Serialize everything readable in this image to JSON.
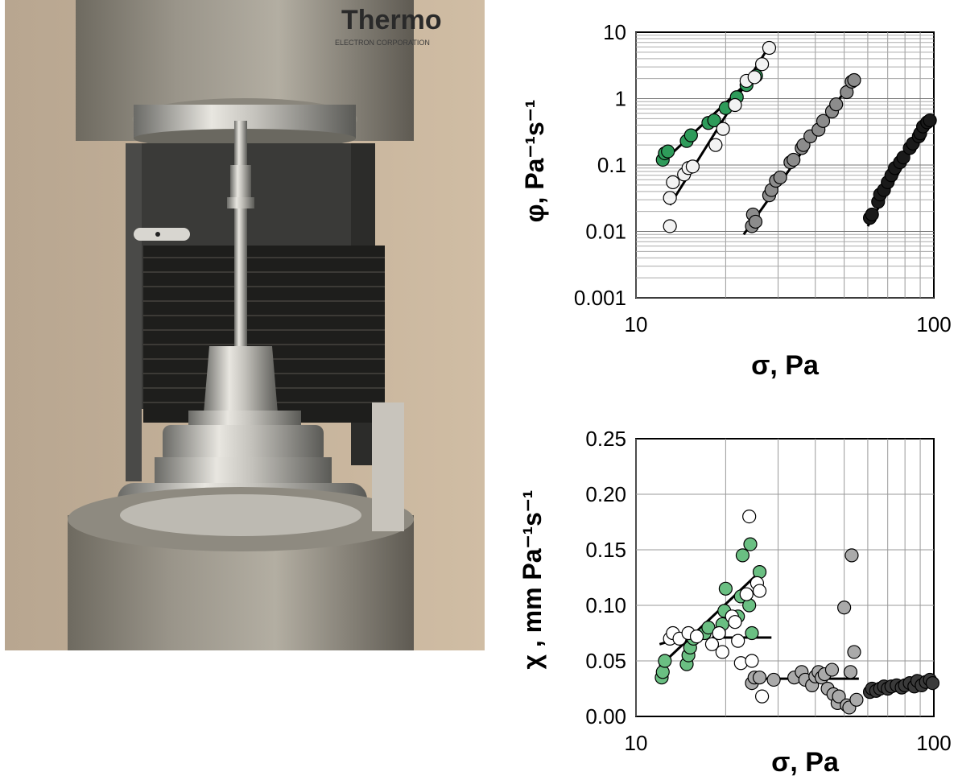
{
  "photo": {
    "description_icon": "rheometer-vane-photo-icon",
    "brand_text": "Thermo",
    "brand_subtext": "ELECTRON CORPORATION"
  },
  "chart_data": [
    {
      "type": "scatter",
      "title": "",
      "xlabel": "σ, Pa",
      "ylabel": "φ, Pa⁻¹s⁻¹",
      "xscale": "log",
      "yscale": "log",
      "xlim": [
        10,
        100
      ],
      "ylim": [
        0.001,
        10
      ],
      "xticks": [
        "10",
        "100"
      ],
      "yticks": [
        "0.001",
        "0.01",
        "0.1",
        "1",
        "10"
      ],
      "grid": true,
      "series": [
        {
          "fill": "#2e9b5a",
          "points": [
            [
              12.3,
              0.12
            ],
            [
              12.5,
              0.15
            ],
            [
              12.8,
              0.16
            ],
            [
              14.8,
              0.23
            ],
            [
              15.3,
              0.28
            ],
            [
              17.5,
              0.43
            ],
            [
              18.3,
              0.47
            ],
            [
              20.0,
              0.72
            ],
            [
              21.8,
              1.05
            ],
            [
              23.5,
              1.6
            ],
            [
              25.3,
              2.2
            ]
          ],
          "fit": [
            [
              12.0,
              0.1
            ],
            [
              26.0,
              2.6
            ]
          ]
        },
        {
          "fill": "#f2f2f2",
          "points": [
            [
              13.0,
              0.012
            ],
            [
              13.0,
              0.032
            ],
            [
              13.3,
              0.055
            ],
            [
              14.5,
              0.072
            ],
            [
              15.0,
              0.09
            ],
            [
              15.5,
              0.095
            ],
            [
              18.5,
              0.2
            ],
            [
              19.6,
              0.35
            ],
            [
              21.5,
              0.8
            ],
            [
              23.5,
              1.85
            ],
            [
              25.0,
              2.1
            ],
            [
              26.5,
              3.3
            ],
            [
              28.0,
              5.8
            ]
          ],
          "fit": [
            [
              13.0,
              0.025
            ],
            [
              28.5,
              7.0
            ]
          ]
        },
        {
          "fill": "#8c8c8c",
          "points": [
            [
              24.5,
              0.012
            ],
            [
              24.7,
              0.018
            ],
            [
              25.2,
              0.014
            ],
            [
              28.0,
              0.035
            ],
            [
              28.5,
              0.042
            ],
            [
              29.5,
              0.058
            ],
            [
              30.5,
              0.065
            ],
            [
              33.0,
              0.11
            ],
            [
              33.8,
              0.12
            ],
            [
              36.0,
              0.18
            ],
            [
              36.5,
              0.2
            ],
            [
              38.5,
              0.27
            ],
            [
              41.0,
              0.34
            ],
            [
              42.5,
              0.46
            ],
            [
              45.5,
              0.64
            ],
            [
              47.0,
              0.82
            ],
            [
              51.0,
              1.25
            ],
            [
              53.0,
              1.8
            ],
            [
              54.0,
              1.9
            ]
          ],
          "fit": [
            [
              23.0,
              0.009
            ],
            [
              55.0,
              2.3
            ]
          ]
        },
        {
          "fill": "#1a1a1a",
          "points": [
            [
              61.0,
              0.016
            ],
            [
              62.0,
              0.018
            ],
            [
              65.0,
              0.028
            ],
            [
              66.0,
              0.036
            ],
            [
              68.0,
              0.042
            ],
            [
              70.0,
              0.055
            ],
            [
              72.0,
              0.07
            ],
            [
              74.0,
              0.09
            ],
            [
              77.0,
              0.11
            ],
            [
              79.0,
              0.13
            ],
            [
              83.0,
              0.18
            ],
            [
              85.0,
              0.21
            ],
            [
              89.0,
              0.27
            ],
            [
              90.0,
              0.3
            ],
            [
              92.0,
              0.38
            ],
            [
              95.0,
              0.44
            ],
            [
              97.0,
              0.47
            ]
          ],
          "fit": [
            [
              60.0,
              0.012
            ],
            [
              97.0,
              0.5
            ]
          ]
        }
      ]
    },
    {
      "type": "scatter",
      "title": "",
      "xlabel": "σ, Pa",
      "ylabel": "χ , mm Pa⁻¹s⁻¹",
      "xscale": "log",
      "yscale": "linear",
      "xlim": [
        10,
        100
      ],
      "ylim": [
        0,
        0.25
      ],
      "xticks": [
        "10",
        "100"
      ],
      "yticks": [
        "0.00",
        "0.05",
        "0.10",
        "0.15",
        "0.20",
        "0.25"
      ],
      "grid": true,
      "series": [
        {
          "fill": "#6abf82",
          "points": [
            [
              12.2,
              0.035
            ],
            [
              12.3,
              0.04
            ],
            [
              12.5,
              0.05
            ],
            [
              14.8,
              0.047
            ],
            [
              15.0,
              0.055
            ],
            [
              15.2,
              0.062
            ],
            [
              15.6,
              0.07
            ],
            [
              17.0,
              0.075
            ],
            [
              17.5,
              0.08
            ],
            [
              19.5,
              0.083
            ],
            [
              19.8,
              0.095
            ],
            [
              20.0,
              0.115
            ],
            [
              22.0,
              0.09
            ],
            [
              22.5,
              0.108
            ],
            [
              22.8,
              0.145
            ],
            [
              24.0,
              0.1
            ],
            [
              24.2,
              0.155
            ],
            [
              24.5,
              0.075
            ],
            [
              26.0,
              0.13
            ]
          ],
          "fits": [
            [
              [
                12.0,
                0.045
              ],
              [
                26.0,
                0.13
              ]
            ]
          ]
        },
        {
          "fill": "#ffffff",
          "points": [
            [
              13.0,
              0.07
            ],
            [
              13.3,
              0.075
            ],
            [
              14.0,
              0.07
            ],
            [
              15.0,
              0.075
            ],
            [
              16.0,
              0.072
            ],
            [
              18.0,
              0.065
            ],
            [
              19.0,
              0.075
            ],
            [
              19.5,
              0.058
            ],
            [
              21.0,
              0.09
            ],
            [
              21.5,
              0.085
            ],
            [
              22.0,
              0.068
            ],
            [
              22.5,
              0.048
            ],
            [
              23.5,
              0.11
            ],
            [
              24.0,
              0.18
            ],
            [
              24.5,
              0.05
            ],
            [
              25.5,
              0.12
            ],
            [
              26.0,
              0.113
            ],
            [
              26.5,
              0.018
            ]
          ],
          "fits": [
            [
              [
                12.0,
                0.065
              ],
              [
                16.0,
                0.075
              ]
            ],
            [
              [
                18.0,
                0.071
              ],
              [
                28.5,
                0.071
              ]
            ]
          ]
        },
        {
          "fill": "#aaaaaa",
          "points": [
            [
              24.5,
              0.03
            ],
            [
              25.0,
              0.035
            ],
            [
              26.0,
              0.035
            ],
            [
              29.0,
              0.033
            ],
            [
              34.0,
              0.035
            ],
            [
              36.0,
              0.04
            ],
            [
              37.0,
              0.033
            ],
            [
              39.0,
              0.028
            ],
            [
              40.0,
              0.036
            ],
            [
              41.0,
              0.04
            ],
            [
              42.0,
              0.035
            ],
            [
              43.0,
              0.038
            ],
            [
              44.0,
              0.025
            ],
            [
              45.5,
              0.042
            ],
            [
              46.0,
              0.02
            ],
            [
              47.5,
              0.012
            ],
            [
              48.0,
              0.018
            ],
            [
              50.0,
              0.098
            ],
            [
              51.0,
              0.01
            ],
            [
              52.0,
              0.008
            ],
            [
              53.0,
              0.145
            ],
            [
              54.0,
              0.058
            ],
            [
              55.0,
              0.015
            ],
            [
              52.5,
              0.04
            ]
          ],
          "fits": [
            [
              [
                24.0,
                0.034
              ],
              [
                56.0,
                0.034
              ]
            ]
          ]
        },
        {
          "fill": "#3a3a3a",
          "points": [
            [
              61.0,
              0.022
            ],
            [
              62.0,
              0.025
            ],
            [
              64.0,
              0.023
            ],
            [
              66.0,
              0.025
            ],
            [
              68.0,
              0.027
            ],
            [
              70.0,
              0.025
            ],
            [
              72.0,
              0.027
            ],
            [
              75.0,
              0.028
            ],
            [
              78.0,
              0.026
            ],
            [
              80.0,
              0.028
            ],
            [
              83.0,
              0.03
            ],
            [
              86.0,
              0.027
            ],
            [
              88.0,
              0.032
            ],
            [
              91.0,
              0.028
            ],
            [
              94.0,
              0.031
            ],
            [
              97.0,
              0.033
            ],
            [
              99.0,
              0.03
            ]
          ],
          "fits": [
            [
              [
                60.0,
                0.024
              ],
              [
                100.0,
                0.031
              ]
            ]
          ]
        }
      ]
    }
  ]
}
